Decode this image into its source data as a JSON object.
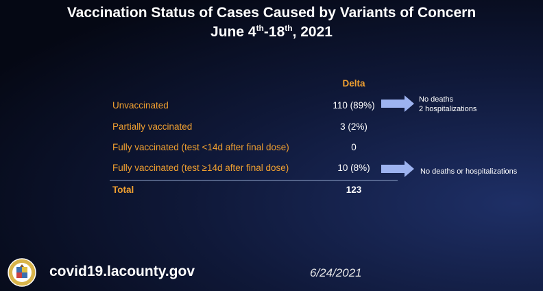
{
  "title": {
    "line1": "Vaccination Status of Cases Caused by Variants of Concern",
    "date_part1": "June 4",
    "sup1": "th",
    "date_part2": "-18",
    "sup2": "th",
    "date_part3": ", 2021"
  },
  "table": {
    "column_header": "Delta",
    "rows": [
      {
        "label": "Unvaccinated",
        "value": "110 (89%)"
      },
      {
        "label": "Partially vaccinated",
        "value": "3 (2%)"
      },
      {
        "label": "Fully vaccinated (test <14d after final dose)",
        "value": "0"
      },
      {
        "label": "Fully vaccinated (test ≥14d after final dose)",
        "value": "10 (8%)"
      }
    ],
    "total": {
      "label": "Total",
      "value": "123"
    }
  },
  "notes": {
    "unvaccinated_line1": "No deaths",
    "unvaccinated_line2": "2 hospitalizations",
    "fully_vaccinated": "No deaths or hospitalizations"
  },
  "footer": {
    "url": "covid19.lacounty.gov",
    "date": "6/24/2021",
    "seal_icon": "county-seal-icon"
  },
  "colors": {
    "accent": "#f0a030",
    "arrow": "#9db3f0",
    "background": "#0f1838"
  }
}
